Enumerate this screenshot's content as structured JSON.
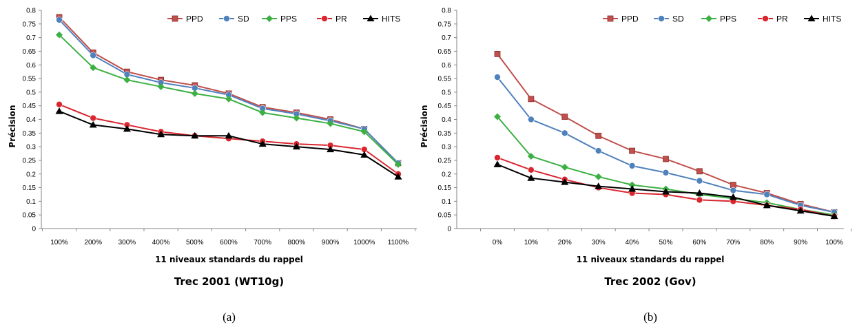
{
  "chart_data": [
    {
      "type": "line",
      "title": "Trec 2001 (WT10g)",
      "xlabel": "11 niveaux standards du rappel",
      "ylabel": "Précision",
      "caption": "(a)",
      "ylim": [
        0,
        0.8
      ],
      "ytick_step": 0.05,
      "grid": false,
      "legend_position": "top-right",
      "categories": [
        "100%",
        "200%",
        "300%",
        "400%",
        "500%",
        "600%",
        "700%",
        "800%",
        "900%",
        "1000%",
        "1100%"
      ],
      "series": [
        {
          "name": "PPD",
          "color": "#c0504d",
          "marker": "square",
          "values": [
            0.775,
            0.645,
            0.575,
            0.545,
            0.525,
            0.495,
            0.445,
            0.425,
            0.4,
            0.365,
            0.24
          ]
        },
        {
          "name": "SD",
          "color": "#4f81bd",
          "marker": "circle",
          "values": [
            0.765,
            0.635,
            0.565,
            0.535,
            0.515,
            0.49,
            0.44,
            0.42,
            0.395,
            0.365,
            0.24
          ]
        },
        {
          "name": "PPS",
          "color": "#3cb043",
          "marker": "diamond",
          "values": [
            0.71,
            0.59,
            0.545,
            0.52,
            0.495,
            0.475,
            0.425,
            0.405,
            0.385,
            0.355,
            0.235
          ]
        },
        {
          "name": "PR",
          "color": "#d9262f",
          "marker": "circle",
          "values": [
            0.455,
            0.405,
            0.38,
            0.355,
            0.34,
            0.33,
            0.32,
            0.31,
            0.305,
            0.29,
            0.2
          ]
        },
        {
          "name": "HITS",
          "color": "#000000",
          "marker": "triangle",
          "values": [
            0.43,
            0.38,
            0.365,
            0.345,
            0.34,
            0.34,
            0.31,
            0.3,
            0.29,
            0.27,
            0.19
          ]
        }
      ]
    },
    {
      "type": "line",
      "title": "Trec 2002 (Gov)",
      "xlabel": "11 niveaux standards du rappel",
      "ylabel": "Précision",
      "caption": "(b)",
      "ylim": [
        0,
        0.8
      ],
      "ytick_step": 0.05,
      "grid": false,
      "legend_position": "top-right",
      "categories": [
        "0%",
        "10%",
        "20%",
        "30%",
        "40%",
        "50%",
        "60%",
        "70%",
        "80%",
        "90%",
        "100%"
      ],
      "series": [
        {
          "name": "PPD",
          "color": "#c0504d",
          "marker": "square",
          "values": [
            0.64,
            0.475,
            0.41,
            0.34,
            0.285,
            0.255,
            0.21,
            0.16,
            0.13,
            0.09,
            0.06
          ]
        },
        {
          "name": "SD",
          "color": "#4f81bd",
          "marker": "circle",
          "values": [
            0.555,
            0.4,
            0.35,
            0.285,
            0.23,
            0.205,
            0.175,
            0.14,
            0.125,
            0.085,
            0.06
          ]
        },
        {
          "name": "PPS",
          "color": "#3cb043",
          "marker": "diamond",
          "values": [
            0.41,
            0.265,
            0.225,
            0.19,
            0.16,
            0.145,
            0.125,
            0.11,
            0.095,
            0.07,
            0.05
          ]
        },
        {
          "name": "PR",
          "color": "#d9262f",
          "marker": "circle",
          "values": [
            0.26,
            0.215,
            0.18,
            0.15,
            0.13,
            0.125,
            0.105,
            0.1,
            0.085,
            0.07,
            0.045
          ]
        },
        {
          "name": "HITS",
          "color": "#000000",
          "marker": "triangle",
          "values": [
            0.235,
            0.185,
            0.17,
            0.155,
            0.145,
            0.135,
            0.13,
            0.115,
            0.085,
            0.065,
            0.045
          ]
        }
      ]
    }
  ]
}
